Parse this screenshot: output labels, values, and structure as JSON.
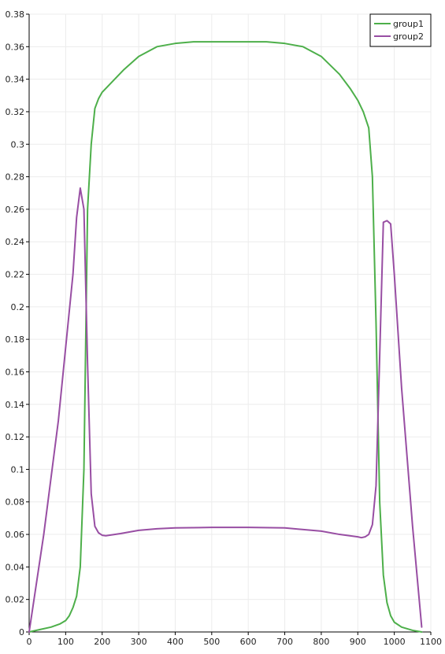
{
  "chart_data": {
    "type": "line",
    "title": "",
    "xlabel": "",
    "ylabel": "",
    "xlim": [
      0,
      1100
    ],
    "ylim": [
      0,
      0.38
    ],
    "grid": true,
    "legend_position": "top-right",
    "x_ticks": [
      "0",
      "100",
      "200",
      "300",
      "400",
      "500",
      "600",
      "700",
      "800",
      "900",
      "1000",
      "1100"
    ],
    "y_ticks": [
      "0",
      "0.02",
      "0.04",
      "0.06",
      "0.08",
      "0.1",
      "0.12",
      "0.14",
      "0.16",
      "0.18",
      "0.2",
      "0.22",
      "0.24",
      "0.26",
      "0.28",
      "0.3",
      "0.32",
      "0.34",
      "0.36",
      "0.38"
    ],
    "series": [
      {
        "name": "group1",
        "color": "#4daf4a",
        "x": [
          0,
          30,
          60,
          85,
          100,
          110,
          120,
          130,
          140,
          150,
          160,
          170,
          180,
          190,
          200,
          230,
          260,
          300,
          350,
          400,
          450,
          500,
          550,
          600,
          650,
          700,
          750,
          800,
          850,
          880,
          900,
          915,
          930,
          940,
          950,
          960,
          970,
          980,
          990,
          1000,
          1020,
          1050,
          1075
        ],
        "y": [
          0,
          0.0015,
          0.003,
          0.005,
          0.007,
          0.01,
          0.015,
          0.022,
          0.04,
          0.1,
          0.26,
          0.3,
          0.322,
          0.328,
          0.332,
          0.339,
          0.346,
          0.354,
          0.36,
          0.362,
          0.363,
          0.363,
          0.363,
          0.363,
          0.363,
          0.362,
          0.36,
          0.354,
          0.343,
          0.334,
          0.327,
          0.32,
          0.31,
          0.28,
          0.19,
          0.08,
          0.035,
          0.018,
          0.01,
          0.006,
          0.003,
          0.001,
          0
        ]
      },
      {
        "name": "group2",
        "color": "#984ea3",
        "x": [
          0,
          40,
          80,
          120,
          130,
          140,
          150,
          160,
          170,
          180,
          190,
          200,
          210,
          250,
          300,
          350,
          400,
          500,
          600,
          700,
          800,
          850,
          900,
          910,
          920,
          930,
          940,
          950,
          960,
          970,
          980,
          990,
          1000,
          1020,
          1050,
          1075
        ],
        "y": [
          0,
          0.06,
          0.13,
          0.22,
          0.255,
          0.273,
          0.26,
          0.165,
          0.085,
          0.065,
          0.061,
          0.0595,
          0.0592,
          0.0605,
          0.0625,
          0.0635,
          0.064,
          0.0643,
          0.0643,
          0.064,
          0.062,
          0.06,
          0.0585,
          0.058,
          0.0585,
          0.06,
          0.066,
          0.09,
          0.17,
          0.252,
          0.253,
          0.251,
          0.22,
          0.15,
          0.065,
          0.003
        ]
      }
    ]
  }
}
